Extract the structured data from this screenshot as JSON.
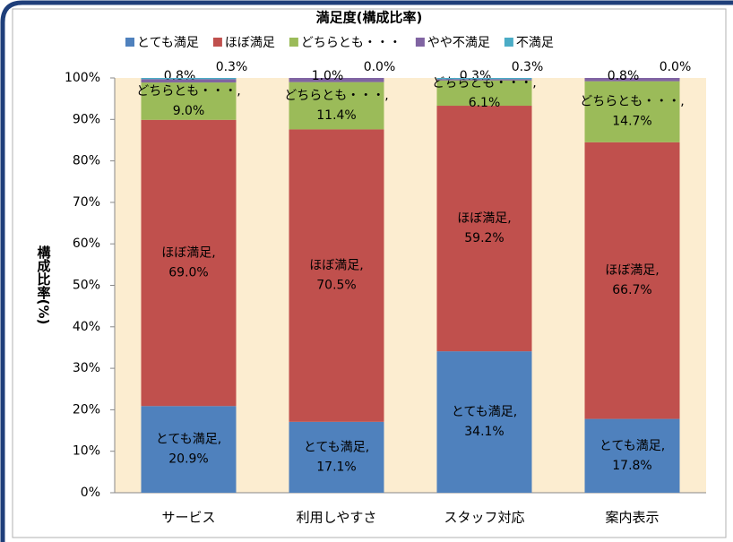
{
  "chart_data": {
    "type": "stacked_bar",
    "title": "満足度(構成比率)",
    "y_label": "構成比率(%)",
    "categories": [
      "サービス",
      "利用しやすさ",
      "スタッフ対応",
      "案内表示"
    ],
    "series": [
      {
        "name": "とても満足",
        "color": "#4f81bd",
        "values": [
          20.9,
          17.1,
          34.1,
          17.8
        ],
        "value_labels": [
          [
            "とても満足,",
            "20.9%"
          ],
          [
            "とても満足,",
            "17.1%"
          ],
          [
            "とても満足,",
            "34.1%"
          ],
          [
            "とても満足,",
            "17.8%"
          ]
        ]
      },
      {
        "name": "ほぼ満足",
        "color": "#c0504d",
        "values": [
          69.0,
          70.5,
          59.2,
          66.7
        ],
        "value_labels": [
          [
            "ほぼ満足,",
            "69.0%"
          ],
          [
            "ほぼ満足,",
            "70.5%"
          ],
          [
            "ほぼ満足,",
            "59.2%"
          ],
          [
            "ほぼ満足,",
            "66.7%"
          ]
        ]
      },
      {
        "name": "どちらとも・・・",
        "color": "#9bbb59",
        "values": [
          9.0,
          11.4,
          6.1,
          14.7
        ],
        "value_labels": [
          [
            "どちらとも・・・,",
            "9.0%"
          ],
          [
            "どちらとも・・・,",
            "11.4%"
          ],
          [
            "どちらとも・・・,",
            "6.1%"
          ],
          [
            "どちらとも・・・,",
            "14.7%"
          ]
        ]
      },
      {
        "name": "やや不満足",
        "color": "#8064a2",
        "values": [
          0.8,
          1.0,
          0.3,
          0.8
        ],
        "value_labels": [
          [
            "0.8%"
          ],
          [
            "1.0%"
          ],
          [
            "0.3%"
          ],
          [
            "0.8%"
          ]
        ]
      },
      {
        "name": "不満足",
        "color": "#4bacc6",
        "values": [
          0.3,
          0.0,
          0.3,
          0.0
        ],
        "value_labels": [
          [
            "0.3%"
          ],
          [
            "0.0%"
          ],
          [
            "0.3%"
          ],
          [
            "0.0%"
          ]
        ]
      }
    ],
    "ylim": [
      0,
      100
    ],
    "yticks": [
      {
        "value": 0,
        "label": "0%"
      },
      {
        "value": 10,
        "label": "10%"
      },
      {
        "value": 20,
        "label": "20%"
      },
      {
        "value": 30,
        "label": "30%"
      },
      {
        "value": 40,
        "label": "40%"
      },
      {
        "value": 50,
        "label": "50%"
      },
      {
        "value": 60,
        "label": "60%"
      },
      {
        "value": 70,
        "label": "70%"
      },
      {
        "value": 80,
        "label": "80%"
      },
      {
        "value": 90,
        "label": "90%"
      },
      {
        "value": 100,
        "label": "100%"
      }
    ],
    "legend": "top"
  }
}
